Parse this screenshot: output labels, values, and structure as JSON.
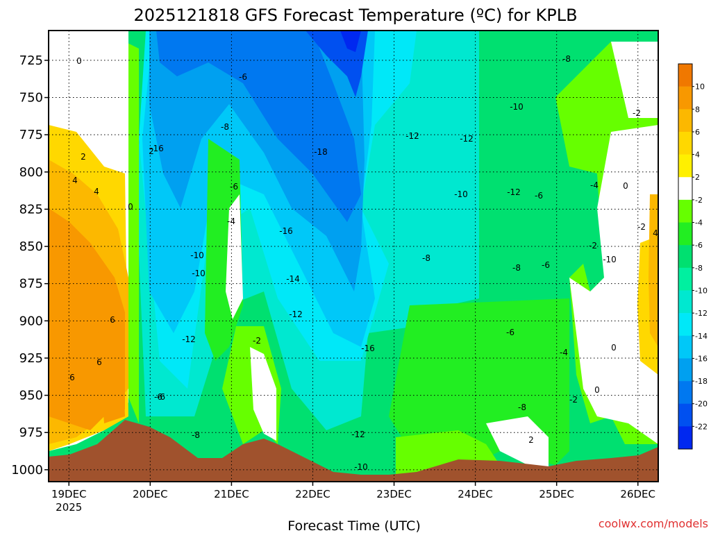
{
  "chart_data": {
    "type": "heatmap",
    "title": "2025121818 GFS Forecast Temperature (ºC) for KPLB",
    "xlabel": "Forecast Time (UTC)",
    "ylabel": "",
    "credit": "coolwx.com/models",
    "y_axis": {
      "scale": "pressure",
      "range": [
        1008,
        705
      ],
      "ticks": [
        "725",
        "750",
        "775",
        "800",
        "825",
        "850",
        "875",
        "900",
        "925",
        "950",
        "975",
        "1000"
      ]
    },
    "x_axis": {
      "range": [
        "2025-12-18T18",
        "2025-12-26T06"
      ],
      "ticks": [
        {
          "label": "19DEC",
          "sub": "2025",
          "time": "2025-12-19T00"
        },
        {
          "label": "20DEC",
          "sub": "",
          "time": "2025-12-20T00"
        },
        {
          "label": "21DEC",
          "sub": "",
          "time": "2025-12-21T00"
        },
        {
          "label": "22DEC",
          "sub": "",
          "time": "2025-12-22T00"
        },
        {
          "label": "23DEC",
          "sub": "",
          "time": "2025-12-23T00"
        },
        {
          "label": "24DEC",
          "sub": "",
          "time": "2025-12-24T00"
        },
        {
          "label": "25DEC",
          "sub": "",
          "time": "2025-12-25T00"
        },
        {
          "label": "26DEC",
          "sub": "",
          "time": "2025-12-26T00"
        }
      ]
    },
    "grid": true,
    "colorbar": {
      "placement": "right",
      "labels": [
        "10",
        "8",
        "6",
        "4",
        "2",
        "-2",
        "-4",
        "-6",
        "-8",
        "-10",
        "-12",
        "-14",
        "-16",
        "-18",
        "-20",
        "-22"
      ],
      "colors": [
        "#f07800",
        "#f89800",
        "#fcb800",
        "#ffd800",
        "#fff000",
        "#ffffff",
        "#66ff00",
        "#22ee22",
        "#00e070",
        "#00f0a0",
        "#00e8d0",
        "#00e8f8",
        "#00c8f8",
        "#00a0f0",
        "#0078f0",
        "#0050f0",
        "#0028f0"
      ]
    },
    "contour_labels": [
      "0",
      "2",
      "4",
      "4",
      "6",
      "6",
      "6",
      "0",
      "-16",
      "-10",
      "-10",
      "-12",
      "-6",
      "-8",
      "-6",
      "-6",
      "-4",
      "-2",
      "-8",
      "-18",
      "-16",
      "-14",
      "-12",
      "-16",
      "-12",
      "-10",
      "-12",
      "-12",
      "-10",
      "-10",
      "-12",
      "-8",
      "-8",
      "-8",
      "-6",
      "-6",
      "-4",
      "-2",
      "-10",
      "-8",
      "-6",
      "-4",
      "-2",
      "0",
      "2",
      "4",
      "-2",
      "-2",
      "0",
      "0",
      "2",
      "-6"
    ]
  }
}
